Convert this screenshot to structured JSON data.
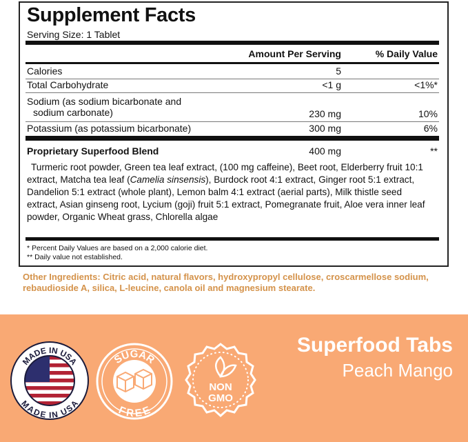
{
  "title": "Supplement Facts",
  "serving": "Serving Size: 1 Tablet",
  "header": {
    "amount": "Amount Per Serving",
    "dv": "% Daily Value"
  },
  "rows": [
    {
      "name": "Calories",
      "amount": "5",
      "dv": ""
    },
    {
      "name": "Total Carbohydrate",
      "amount": "<1 g",
      "dv": "<1%*"
    },
    {
      "name": "Sodium (as sodium bicarbonate and",
      "name2": "sodium carbonate)",
      "amount": "230 mg",
      "dv": "10%"
    },
    {
      "name": "Potassium (as potassium bicarbonate)",
      "amount": "300 mg",
      "dv": "6%"
    }
  ],
  "blend": {
    "name": "Proprietary Superfood Blend",
    "amount": "400 mg",
    "dv": "**",
    "ingredients_a": "Turmeric root powder, Green tea leaf extract, (100 mg caffeine), Beet root, Elderberry fruit 10:1 extract, Matcha tea leaf (",
    "ingredients_italic": "Camelia sinsensis",
    "ingredients_b": "), Burdock root 4:1 extract, Ginger root 5:1 extract, Dandelion 5:1 extract (whole plant), Lemon balm 4:1 extract (aerial parts), Milk thistle seed extract, Asian ginseng root, Lycium (goji) fruit 5:1 extract, Pomegranate fruit, Aloe vera inner leaf powder, Organic Wheat grass, Chlorella algae"
  },
  "footnotes": [
    "* Percent Daily Values are based on a 2,000 calorie diet.",
    "** Daily value not established."
  ],
  "other_ingredients": "Other Ingredients: Citric acid, natural flavors, hydroxypropyl cellulose, croscarmellose sodium, rebaudioside A, silica, L-leucine, canola oil and magnesium stearate.",
  "badges": {
    "usa": "MADE IN USA",
    "sugar_top": "SUGAR",
    "sugar_bottom": "FREE",
    "non": "NON",
    "gmo": "GMO"
  },
  "brand": {
    "name": "Superfood Tabs",
    "flavor": "Peach Mango"
  },
  "colors": {
    "band": "#f9a974",
    "other_text": "#d4924a"
  }
}
